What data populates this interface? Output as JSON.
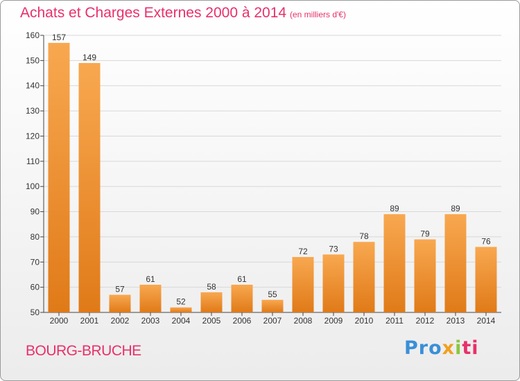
{
  "header": {
    "title": "Achats et Charges Externes 2000 à 2014",
    "subtitle": "(en milliers d'€)"
  },
  "footer": {
    "place": "BOURG-BRUCHE",
    "logo_parts": [
      "Pro",
      "x",
      "i",
      "ti"
    ]
  },
  "colors": {
    "title": "#e8306a",
    "bar_top": "#f8a850",
    "bar_bottom": "#e07a18",
    "grid": "#d8d8d8",
    "axis": "#444444"
  },
  "chart_data": {
    "type": "bar",
    "title": "Achats et Charges Externes 2000 à 2014",
    "subtitle": "(en milliers d'€)",
    "categories": [
      "2000",
      "2001",
      "2002",
      "2003",
      "2004",
      "2005",
      "2006",
      "2007",
      "2008",
      "2009",
      "2010",
      "2011",
      "2012",
      "2013",
      "2014"
    ],
    "values": [
      157,
      149,
      57,
      61,
      52,
      58,
      61,
      55,
      72,
      73,
      78,
      89,
      79,
      89,
      76
    ],
    "ylim": [
      50,
      160
    ],
    "yticks": [
      50,
      60,
      70,
      80,
      90,
      100,
      110,
      120,
      130,
      140,
      150,
      160
    ],
    "grid": true,
    "legend": "none"
  }
}
